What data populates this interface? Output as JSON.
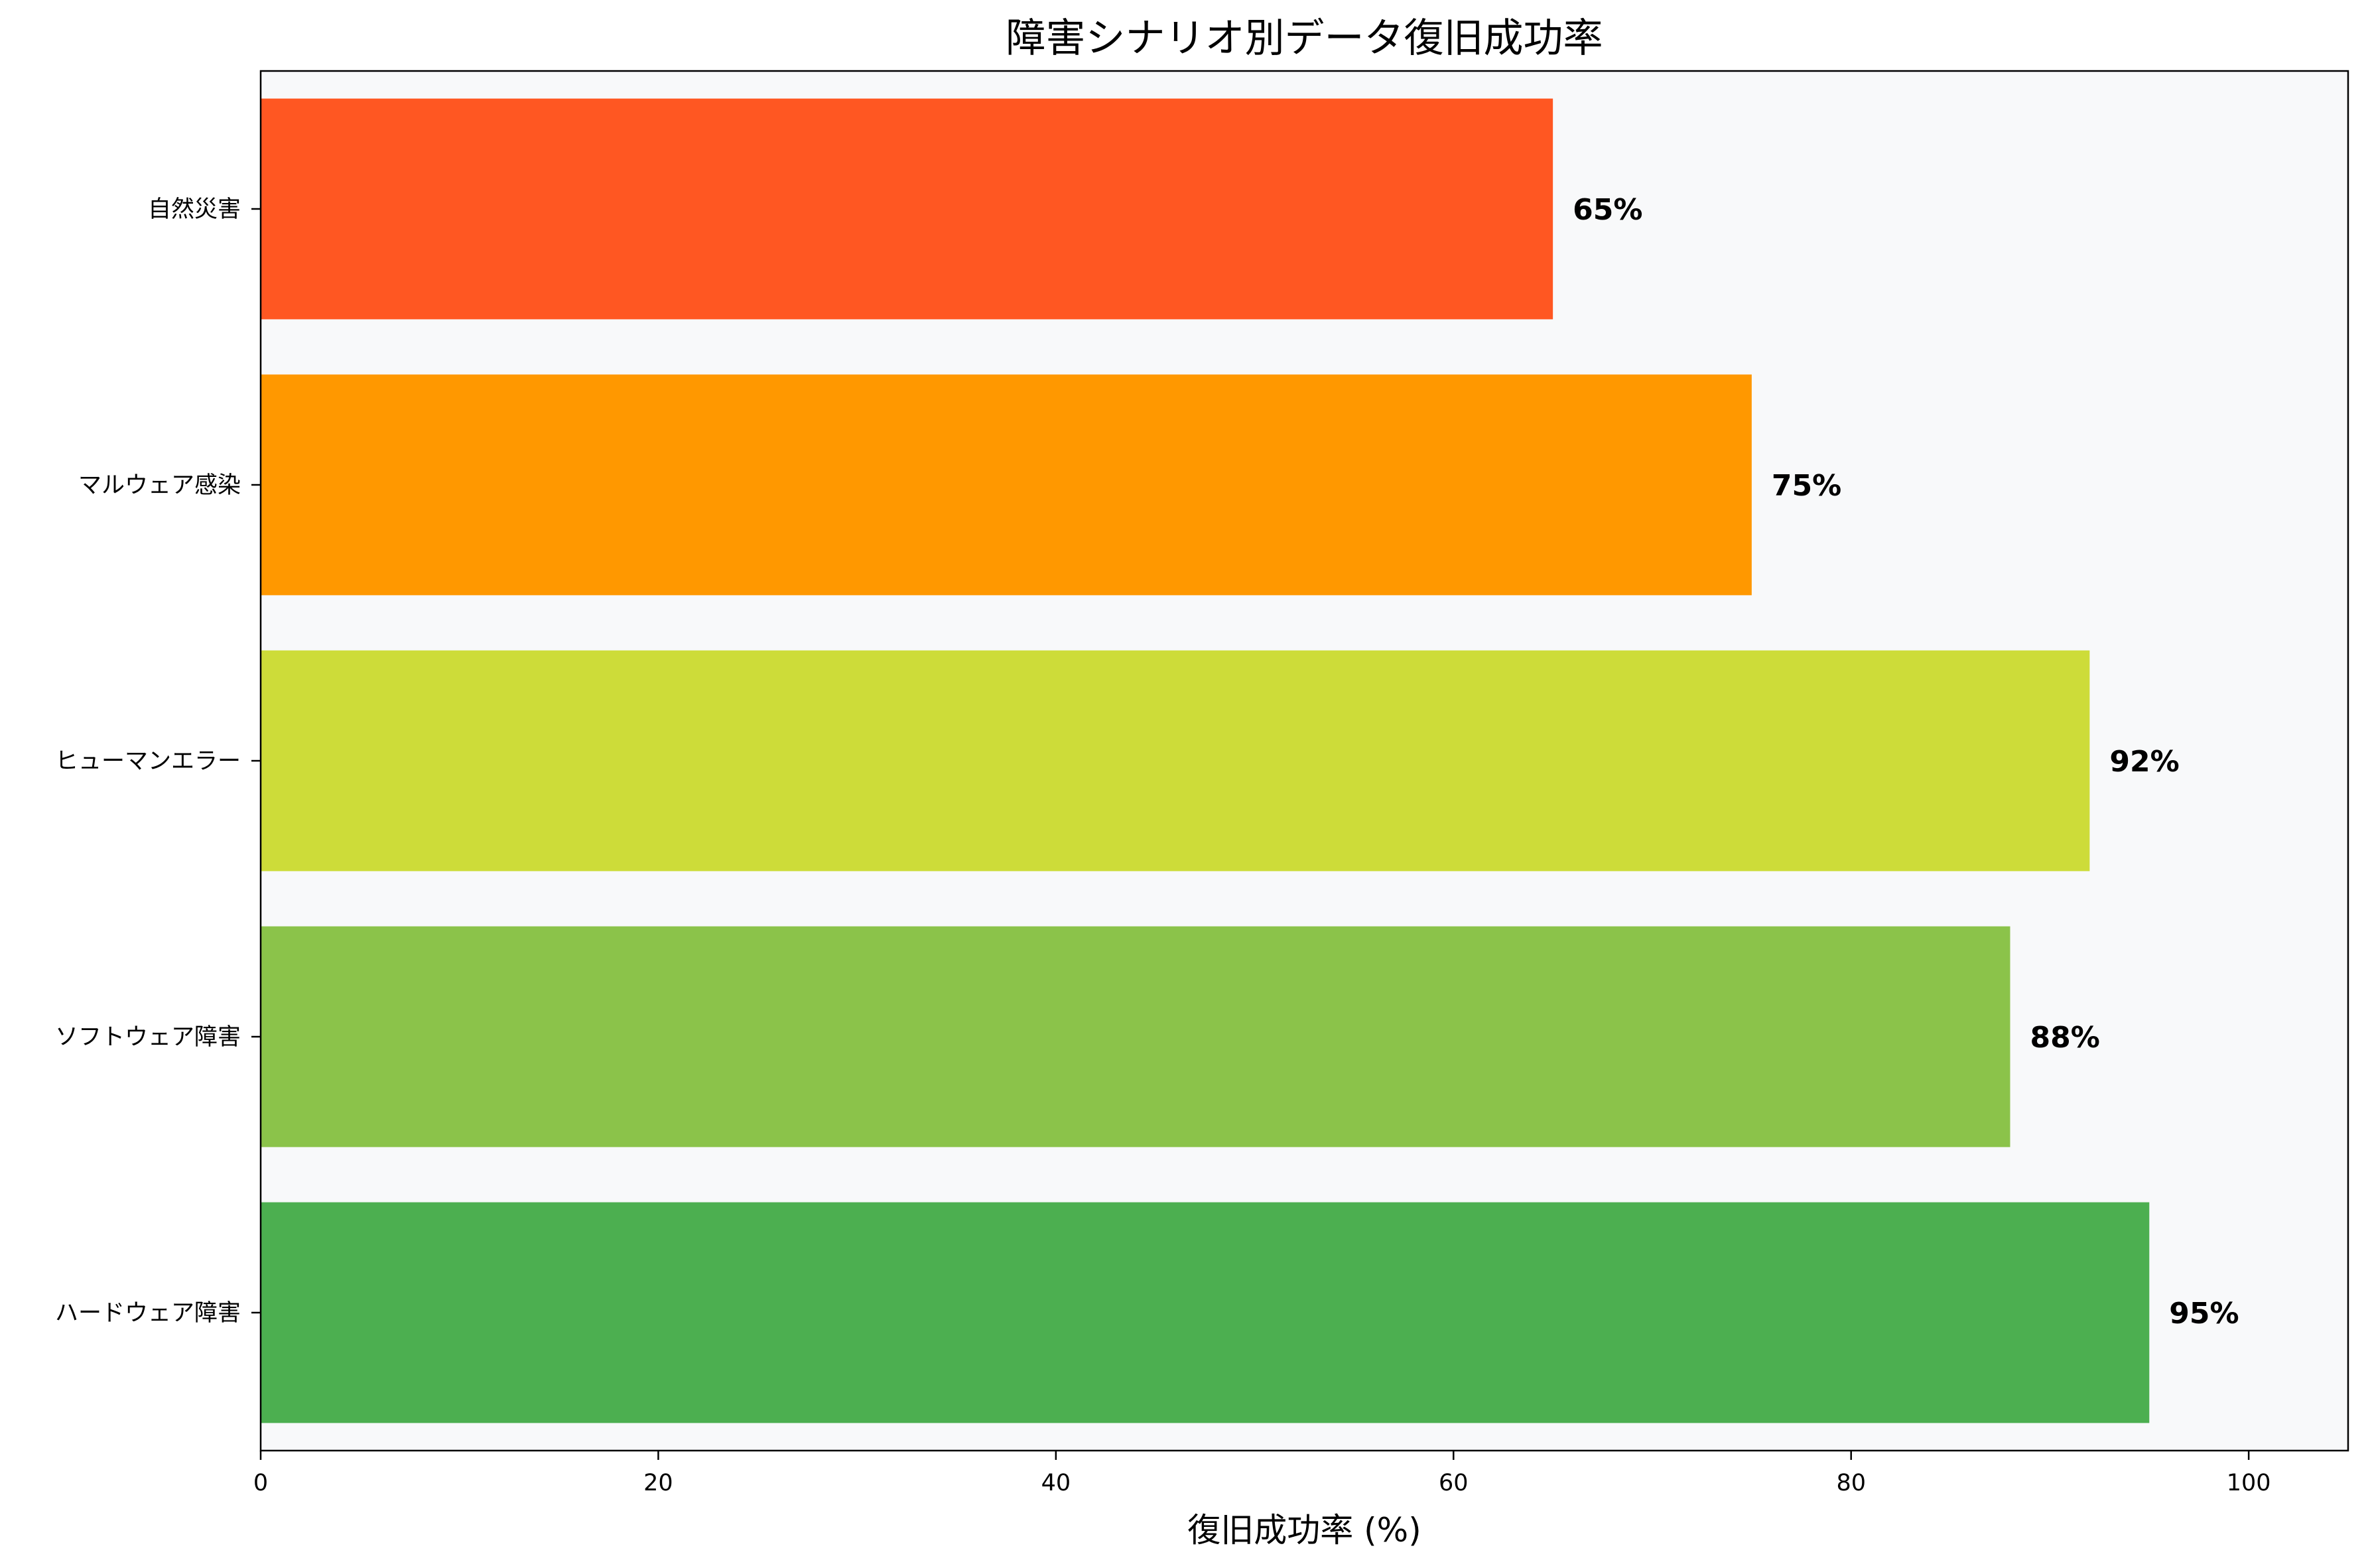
{
  "chart_data": {
    "type": "bar",
    "orientation": "horizontal",
    "title": "障害シナリオ別データ復旧成功率",
    "xlabel": "復旧成功率 (%)",
    "ylabel": "",
    "xlim": [
      0,
      105
    ],
    "x_ticks": [
      0,
      20,
      40,
      60,
      80,
      100
    ],
    "x_tick_labels": [
      "0",
      "20",
      "40",
      "60",
      "80",
      "100"
    ],
    "categories": [
      "ハードウェア障害",
      "ソフトウェア障害",
      "ヒューマンエラー",
      "マルウェア感染",
      "自然災害"
    ],
    "values": [
      95,
      88,
      92,
      75,
      65
    ],
    "value_labels": [
      "95%",
      "88%",
      "92%",
      "75%",
      "65%"
    ],
    "colors": [
      "#4CAF50",
      "#8BC34A",
      "#CDDC39",
      "#FF9800",
      "#FF5722"
    ],
    "plot_background": "#F8F9FA",
    "grid": false,
    "legend": "none"
  }
}
